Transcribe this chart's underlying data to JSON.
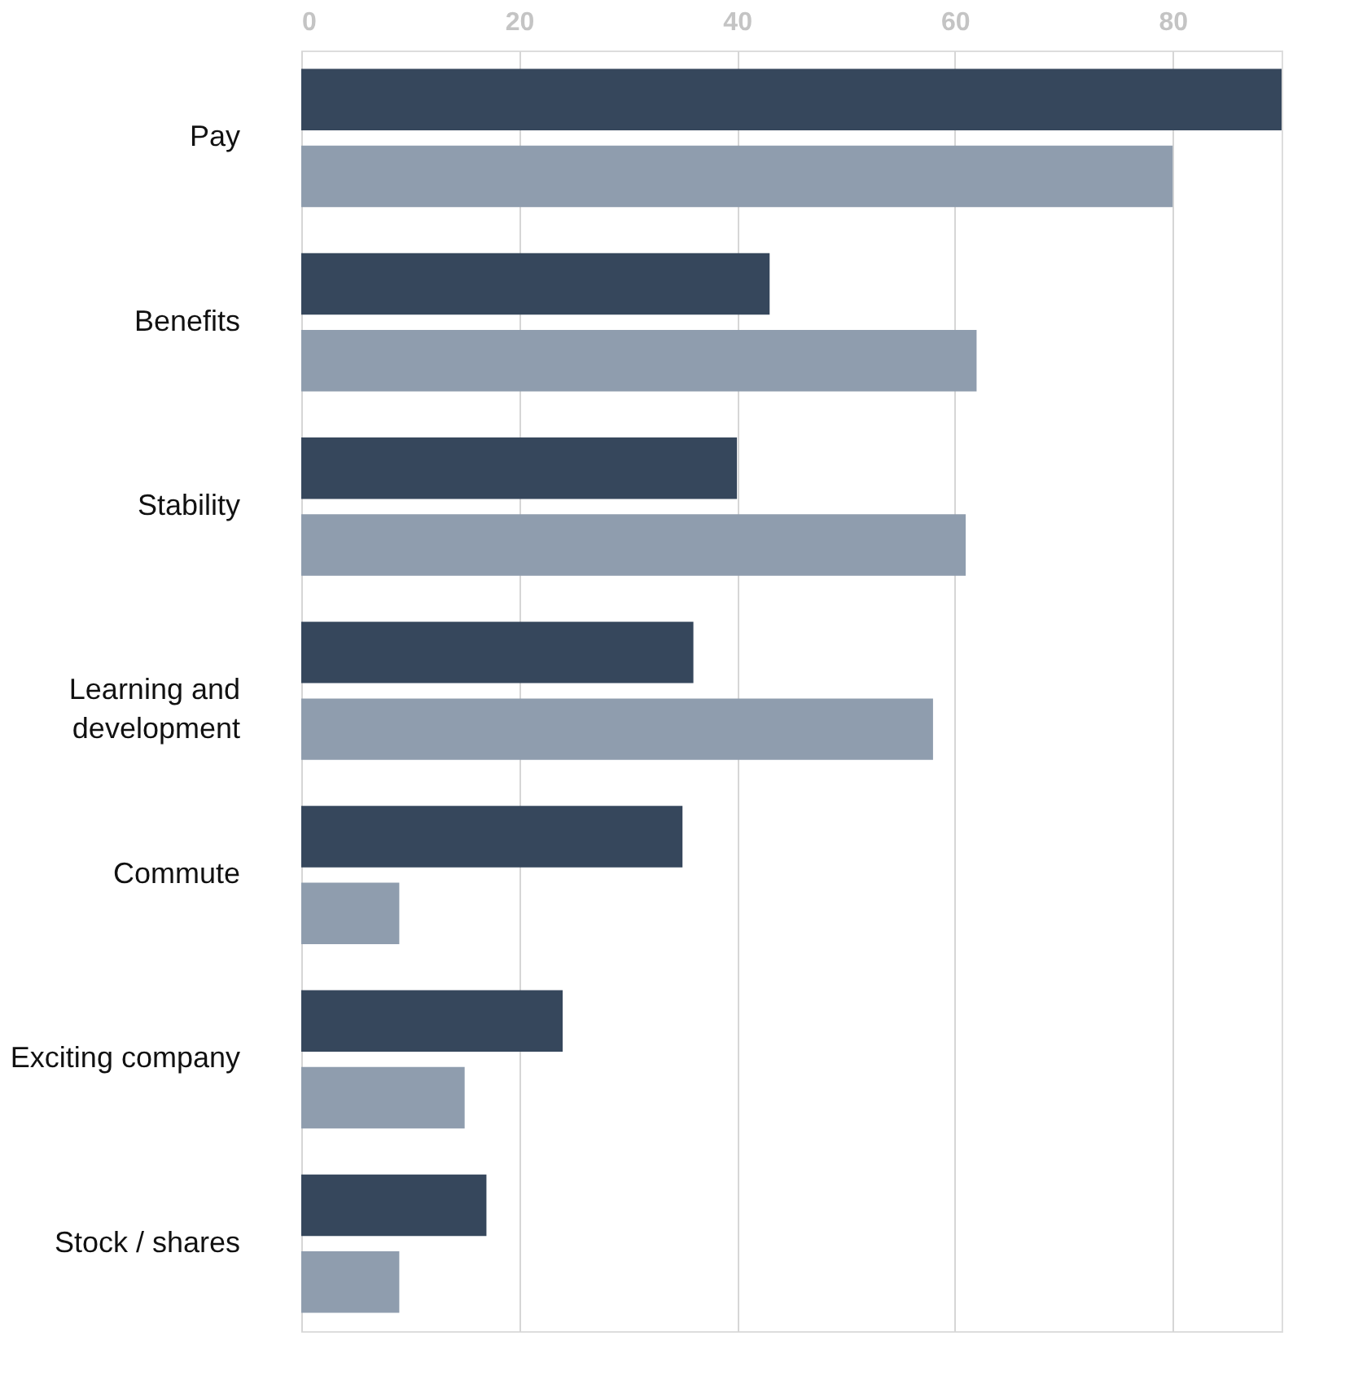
{
  "chart_data": {
    "type": "bar",
    "orientation": "horizontal",
    "categories": [
      "Pay",
      "Benefits",
      "Stability",
      "Learning and development",
      "Commute",
      "Exciting company",
      "Stock / shares"
    ],
    "series": [
      {
        "color": "#36475c",
        "values": [
          90,
          43,
          40,
          36,
          35,
          24,
          17
        ]
      },
      {
        "color": "#8f9dae",
        "values": [
          80,
          62,
          61,
          58,
          9,
          15,
          9
        ]
      }
    ],
    "xlim": [
      0,
      90
    ],
    "xticks": [
      0,
      20,
      40,
      60,
      80
    ],
    "grid": "x",
    "legend": false
  }
}
